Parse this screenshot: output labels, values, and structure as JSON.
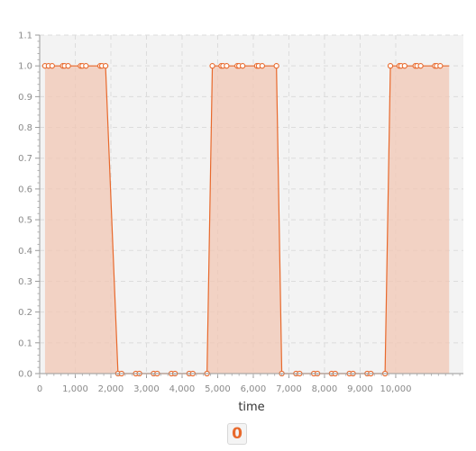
{
  "chart_data": {
    "type": "line",
    "title": "",
    "xlabel": "time",
    "ylabel": "",
    "xlim": [
      0,
      11900
    ],
    "ylim": [
      0,
      1.1
    ],
    "grid": true,
    "legend_placement": "bottom-center",
    "x_ticks": [
      {
        "value": 0,
        "label": "0"
      },
      {
        "value": 1000,
        "label": "1,000"
      },
      {
        "value": 2000,
        "label": "2,000"
      },
      {
        "value": 3000,
        "label": "3,000"
      },
      {
        "value": 4000,
        "label": "4,000"
      },
      {
        "value": 5000,
        "label": "5,000"
      },
      {
        "value": 6000,
        "label": "6,000"
      },
      {
        "value": 7000,
        "label": "7,000"
      },
      {
        "value": 8000,
        "label": "8,000"
      },
      {
        "value": 9000,
        "label": "9,000"
      },
      {
        "value": 10000,
        "label": "10,000"
      }
    ],
    "y_ticks": [
      {
        "value": 0.0,
        "label": "0.0"
      },
      {
        "value": 0.1,
        "label": "0.1"
      },
      {
        "value": 0.2,
        "label": "0.2"
      },
      {
        "value": 0.3,
        "label": "0.3"
      },
      {
        "value": 0.4,
        "label": "0.4"
      },
      {
        "value": 0.5,
        "label": "0.5"
      },
      {
        "value": 0.6,
        "label": "0.6"
      },
      {
        "value": 0.7,
        "label": "0.7"
      },
      {
        "value": 0.8,
        "label": "0.8"
      },
      {
        "value": 0.9,
        "label": "0.9"
      },
      {
        "value": 1.0,
        "label": "1.0"
      },
      {
        "value": 1.1,
        "label": "1.1"
      }
    ],
    "series": [
      {
        "name": "0",
        "color": "#e8692c",
        "fill_color": "#f2c7b4",
        "x": [
          150,
          250,
          350,
          650,
          700,
          800,
          1150,
          1200,
          1300,
          1700,
          1750,
          1850,
          2200,
          2300,
          2700,
          2800,
          3200,
          3300,
          3700,
          3800,
          4200,
          4300,
          4700,
          4850,
          5100,
          5150,
          5250,
          5550,
          5600,
          5700,
          6100,
          6150,
          6250,
          6650,
          6800,
          7200,
          7300,
          7700,
          7800,
          8200,
          8300,
          8700,
          8800,
          9200,
          9300,
          9700,
          9850,
          10100,
          10150,
          10250,
          10550,
          10600,
          10700,
          11100,
          11150,
          11250,
          11500
        ],
        "y": [
          1,
          1,
          1,
          1,
          1,
          1,
          1,
          1,
          1,
          1,
          1,
          1,
          0,
          0,
          0,
          0,
          0,
          0,
          0,
          0,
          0,
          0,
          0,
          1,
          1,
          1,
          1,
          1,
          1,
          1,
          1,
          1,
          1,
          1,
          0,
          0,
          0,
          0,
          0,
          0,
          0,
          0,
          0,
          0,
          0,
          0,
          1,
          1,
          1,
          1,
          1,
          1,
          1,
          1,
          1,
          1,
          1
        ],
        "markers": [
          true,
          true,
          true,
          true,
          true,
          true,
          true,
          true,
          true,
          true,
          true,
          true,
          true,
          true,
          true,
          true,
          true,
          true,
          true,
          true,
          true,
          true,
          true,
          true,
          true,
          true,
          true,
          true,
          true,
          true,
          true,
          true,
          true,
          true,
          true,
          true,
          true,
          true,
          true,
          true,
          true,
          true,
          true,
          true,
          true,
          true,
          true,
          true,
          true,
          true,
          true,
          true,
          true,
          true,
          true,
          true,
          false
        ]
      }
    ]
  }
}
